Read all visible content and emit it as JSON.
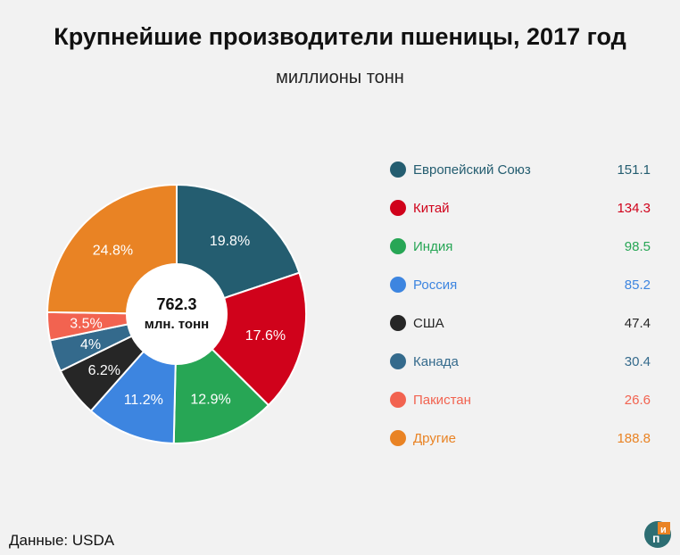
{
  "chart_data": {
    "type": "pie",
    "title": "Крупнейшие производители пшеницы, 2017 год",
    "subtitle": "миллионы тонн",
    "center_value": "762.3",
    "center_unit": "млн. тонн",
    "legend_placement": "right",
    "slices": [
      {
        "name": "Европейский Союз",
        "value": 151.1,
        "value_label": "151.1",
        "percent_label": "19.8%",
        "color": "#245d70"
      },
      {
        "name": "Китай",
        "value": 134.3,
        "value_label": "134.3",
        "percent_label": "17.6%",
        "color": "#d0021b"
      },
      {
        "name": "Индия",
        "value": 98.5,
        "value_label": "98.5",
        "percent_label": "12.9%",
        "color": "#27a655"
      },
      {
        "name": "Россия",
        "value": 85.2,
        "value_label": "85.2",
        "percent_label": "11.2%",
        "color": "#3d85e0"
      },
      {
        "name": "США",
        "value": 47.4,
        "value_label": "47.4",
        "percent_label": "6.2%",
        "color": "#262626"
      },
      {
        "name": "Канада",
        "value": 30.4,
        "value_label": "30.4",
        "percent_label": "4%",
        "color": "#346a8c"
      },
      {
        "name": "Пакистан",
        "value": 26.6,
        "value_label": "26.6",
        "percent_label": "3.5%",
        "color": "#f26350"
      },
      {
        "name": "Другие",
        "value": 188.8,
        "value_label": "188.8",
        "percent_label": "24.8%",
        "color": "#e98324"
      }
    ]
  },
  "source": "Данные: USDA",
  "logo": {
    "icon": "pi-logo-icon"
  }
}
